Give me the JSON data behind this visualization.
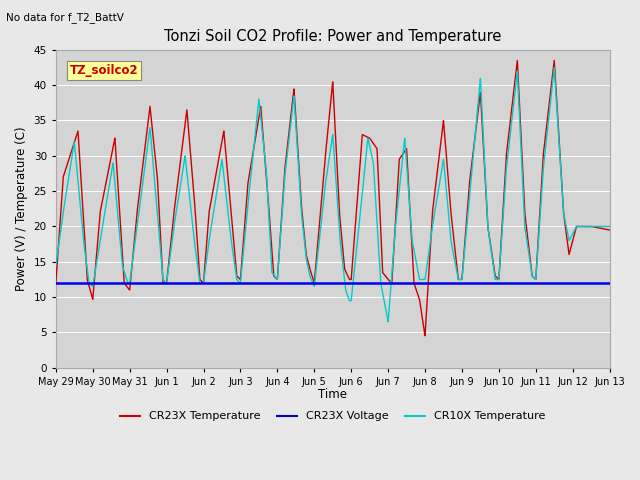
{
  "title": "Tonzi Soil CO2 Profile: Power and Temperature",
  "subtitle": "No data for f_T2_BattV",
  "ylabel": "Power (V) / Temperature (C)",
  "xlabel": "Time",
  "ylim": [
    0,
    45
  ],
  "yticks": [
    0,
    5,
    10,
    15,
    20,
    25,
    30,
    35,
    40,
    45
  ],
  "fig_bg": "#e8e8e8",
  "plot_bg": "#d4d4d4",
  "legend_label_box": "TZ_soilco2",
  "legend_box_facecolor": "#ffff99",
  "legend_entries": [
    "CR23X Temperature",
    "CR23X Voltage",
    "CR10X Temperature"
  ],
  "legend_colors": [
    "#cc0000",
    "#0000cc",
    "#00cccc"
  ],
  "cr23x_temp_color": "#cc0000",
  "cr10x_temp_color": "#00cccc",
  "cr23x_volt_color": "#0000ee",
  "voltage_value": 12.0,
  "x_tick_labels": [
    "May 29",
    "May 30",
    "May 31",
    "Jun 1",
    "Jun 2",
    "Jun 3",
    "Jun 4",
    "Jun 5",
    "Jun 6",
    "Jun 7",
    "Jun 8",
    "Jun 9",
    "Jun 10",
    "Jun 11",
    "Jun 12",
    "Jun 13"
  ],
  "x_tick_positions": [
    0,
    1,
    2,
    3,
    4,
    5,
    6,
    7,
    8,
    9,
    10,
    11,
    12,
    13,
    14,
    15
  ],
  "cr23x_peaks": [
    [
      0.65,
      33.5
    ],
    [
      1.0,
      12.0
    ],
    [
      1.65,
      32.5
    ],
    [
      2.0,
      11.0
    ],
    [
      2.65,
      37.0
    ],
    [
      3.0,
      12.0
    ],
    [
      3.65,
      36.5
    ],
    [
      4.0,
      12.0
    ],
    [
      4.65,
      33.0
    ],
    [
      5.0,
      12.0
    ],
    [
      5.65,
      37.0
    ],
    [
      6.0,
      12.5
    ],
    [
      6.5,
      40.0
    ],
    [
      6.85,
      16.0
    ],
    [
      7.0,
      12.5
    ],
    [
      7.5,
      40.5
    ],
    [
      7.85,
      14.0
    ],
    [
      8.0,
      12.5
    ],
    [
      8.4,
      32.5
    ],
    [
      8.65,
      31.0
    ],
    [
      8.85,
      12.5
    ],
    [
      9.0,
      10.0
    ],
    [
      9.5,
      29.5
    ],
    [
      9.85,
      12.5
    ],
    [
      10.5,
      35.0
    ],
    [
      11.0,
      12.5
    ],
    [
      11.5,
      39.0
    ],
    [
      12.0,
      12.5
    ],
    [
      12.5,
      43.5
    ],
    [
      13.0,
      12.5
    ],
    [
      13.5,
      43.5
    ],
    [
      14.0,
      16.0
    ],
    [
      15.0,
      20.0
    ]
  ],
  "cr10x_peaks": [
    [
      0.0,
      14.5
    ],
    [
      0.55,
      32.0
    ],
    [
      1.0,
      11.5
    ],
    [
      1.6,
      29.0
    ],
    [
      2.0,
      12.0
    ],
    [
      2.6,
      34.0
    ],
    [
      3.0,
      12.0
    ],
    [
      3.6,
      30.0
    ],
    [
      4.0,
      12.0
    ],
    [
      4.55,
      29.5
    ],
    [
      5.0,
      12.0
    ],
    [
      5.55,
      38.0
    ],
    [
      6.0,
      13.0
    ],
    [
      6.5,
      38.5
    ],
    [
      6.85,
      15.5
    ],
    [
      7.0,
      11.5
    ],
    [
      7.5,
      33.0
    ],
    [
      7.85,
      11.0
    ],
    [
      8.0,
      9.5
    ],
    [
      8.4,
      32.5
    ],
    [
      8.65,
      29.0
    ],
    [
      9.0,
      6.5
    ],
    [
      9.5,
      32.5
    ],
    [
      9.85,
      12.5
    ],
    [
      10.5,
      29.5
    ],
    [
      11.0,
      12.5
    ],
    [
      11.5,
      41.0
    ],
    [
      12.0,
      12.5
    ],
    [
      12.5,
      42.0
    ],
    [
      13.0,
      13.0
    ],
    [
      13.5,
      42.5
    ],
    [
      14.0,
      18.0
    ],
    [
      15.0,
      20.0
    ]
  ]
}
